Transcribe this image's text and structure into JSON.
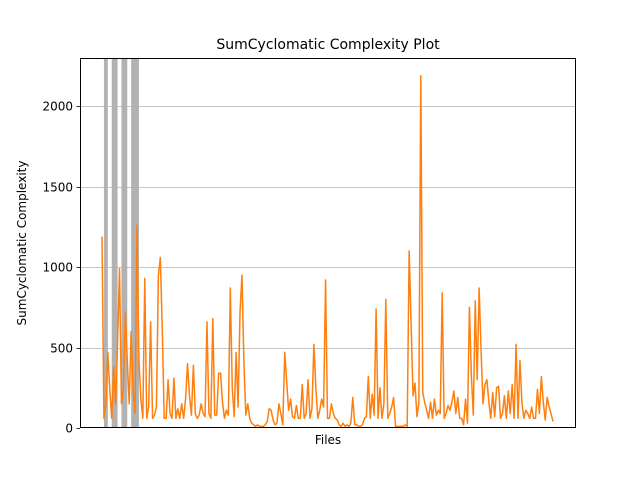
{
  "chart_data": {
    "type": "line",
    "title": "SumCyclomatic Complexity Plot",
    "xlabel": "Files",
    "ylabel": "SumCyclomatic Complexity",
    "ylim": [
      0,
      2300
    ],
    "yticks": [
      0,
      500,
      1000,
      1500,
      2000
    ],
    "xticks": [],
    "grid": "horizontal",
    "colors": {
      "line": "#ff7f0e",
      "highlight": "#b2b2b2",
      "grid": "#b0b0b0"
    },
    "shaded_file_index_ranges": [
      [
        1,
        3
      ],
      [
        5,
        8
      ],
      [
        10,
        13
      ],
      [
        15,
        19
      ]
    ],
    "series": [
      {
        "values": [
          1190,
          60,
          150,
          470,
          240,
          60,
          380,
          150,
          530,
          990,
          150,
          240,
          720,
          420,
          150,
          600,
          240,
          90,
          1260,
          420,
          180,
          60,
          930,
          60,
          130,
          660,
          60,
          80,
          130,
          950,
          1060,
          620,
          60,
          60,
          300,
          90,
          60,
          310,
          60,
          120,
          60,
          150,
          60,
          180,
          400,
          200,
          80,
          390,
          90,
          60,
          80,
          150,
          90,
          70,
          660,
          90,
          60,
          680,
          80,
          80,
          340,
          340,
          160,
          60,
          110,
          80,
          870,
          250,
          70,
          470,
          130,
          720,
          950,
          410,
          80,
          150,
          60,
          30,
          20,
          10,
          20,
          10,
          10,
          10,
          20,
          40,
          120,
          110,
          50,
          20,
          30,
          150,
          90,
          20,
          470,
          290,
          110,
          180,
          70,
          60,
          140,
          60,
          60,
          270,
          60,
          90,
          300,
          60,
          120,
          520,
          250,
          60,
          110,
          180,
          130,
          920,
          60,
          60,
          150,
          90,
          60,
          50,
          20,
          10,
          30,
          10,
          20,
          10,
          30,
          190,
          20,
          20,
          10,
          10,
          20,
          60,
          70,
          320,
          60,
          210,
          80,
          740,
          60,
          250,
          60,
          150,
          800,
          60,
          90,
          130,
          190,
          10,
          10,
          10,
          10,
          10,
          20,
          10,
          1100,
          650,
          200,
          280,
          70,
          160,
          2190,
          220,
          160,
          110,
          60,
          160,
          60,
          180,
          80,
          110,
          90,
          840,
          60,
          90,
          140,
          110,
          160,
          230,
          90,
          190,
          60,
          60,
          20,
          180,
          30,
          750,
          330,
          80,
          790,
          300,
          870,
          480,
          150,
          270,
          300,
          160,
          60,
          220,
          70,
          250,
          260,
          60,
          90,
          200,
          60,
          230,
          90,
          270,
          60,
          520,
          60,
          420,
          160,
          60,
          110,
          90,
          60,
          130,
          60,
          60,
          240,
          90,
          320,
          160,
          50,
          190,
          130,
          90,
          40
        ]
      }
    ]
  }
}
